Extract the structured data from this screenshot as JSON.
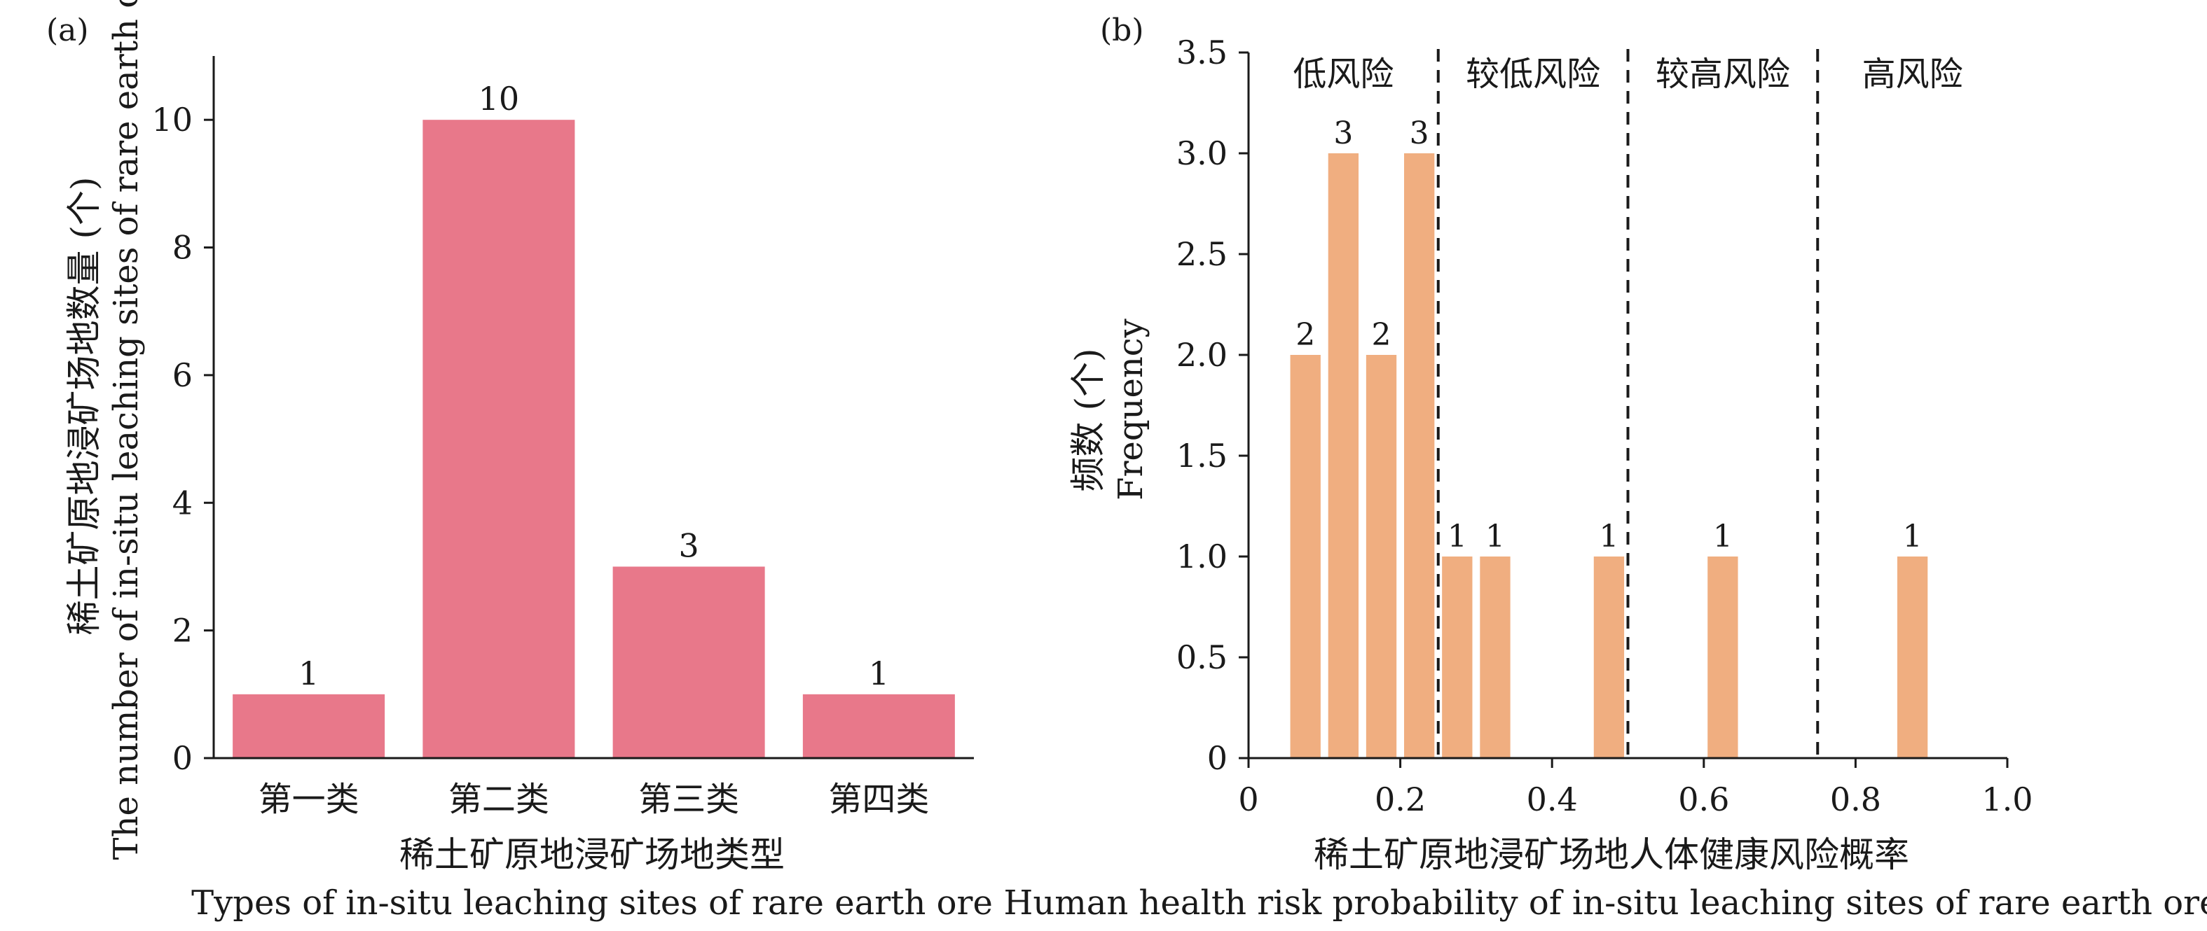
{
  "chart_data": [
    {
      "panel_label": "(a)",
      "type": "bar",
      "categories": [
        "第一类",
        "第二类",
        "第三类",
        "第四类"
      ],
      "values": [
        1,
        10,
        3,
        1
      ],
      "data_labels": [
        "1",
        "10",
        "3",
        "1"
      ],
      "xlabel": "稀土矿原地浸矿场地类型",
      "xlabel_en": "Types of in-situ leaching sites of rare earth ore",
      "ylabel": "稀土矿原地浸矿场地数量 (个)",
      "ylabel_en": "The number of in-situ leaching sites of rare earth ore",
      "ylim": [
        0,
        11
      ],
      "yticks": [
        "0",
        "2",
        "4",
        "6",
        "8",
        "10"
      ],
      "bar_color": "#E8788A",
      "grid": false
    },
    {
      "panel_label": "(b)",
      "type": "bar",
      "x": [
        0.075,
        0.125,
        0.175,
        0.225,
        0.275,
        0.325,
        0.475,
        0.625,
        0.875
      ],
      "values": [
        2,
        3,
        2,
        3,
        1,
        1,
        1,
        1,
        1
      ],
      "data_labels": [
        "2",
        "3",
        "2",
        "3",
        "1",
        "1",
        "1",
        "1",
        "1"
      ],
      "bin_width": 0.04,
      "xlim": [
        0,
        1.0
      ],
      "xticks": [
        "0",
        "0.2",
        "0.4",
        "0.6",
        "0.8",
        "1.0"
      ],
      "ylim": [
        0,
        3.5
      ],
      "yticks": [
        "0",
        "0.5",
        "1.0",
        "1.5",
        "2.0",
        "2.5",
        "3.0",
        "3.5"
      ],
      "ylabel": "频数 (个)",
      "ylabel_en": "Frequency",
      "xlabel": "稀土矿原地浸矿场地人体健康风险概率",
      "xlabel_en": "Human health risk probability of in-situ leaching sites of rare earth ore",
      "thresholds": [
        0.25,
        0.5,
        0.75
      ],
      "regions": [
        "低风险",
        "较低风险",
        "较高风险",
        "高风险"
      ],
      "bar_color": "#F0AE80",
      "grid": false
    }
  ]
}
